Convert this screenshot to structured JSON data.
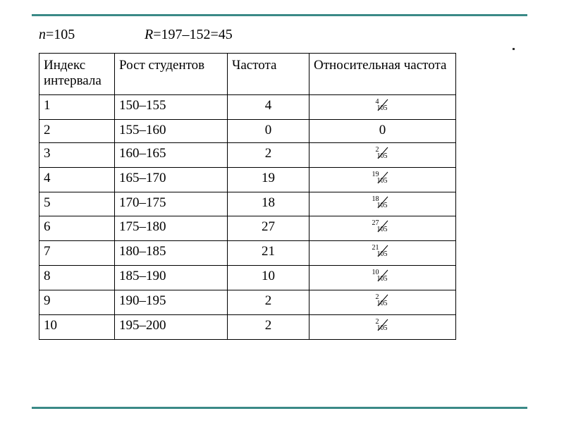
{
  "colors": {
    "teal": "#3a8a87",
    "text": "#000000",
    "bg": "#ffffff",
    "border": "#000000"
  },
  "header": {
    "n_var": "n",
    "n_rest": "=105",
    "R_var": "R",
    "R_rest": "=197–152=45"
  },
  "columns": {
    "c1": "Индекс интервала",
    "c2": "Рост студентов",
    "c3": "Частота",
    "c4": "Относительная частота"
  },
  "rows": [
    {
      "idx": "1",
      "range": "150–155",
      "freq": "4",
      "rel": {
        "type": "frac",
        "num": "4",
        "den": "105"
      }
    },
    {
      "idx": "2",
      "range": "155–160",
      "freq": "0",
      "rel": {
        "type": "text",
        "value": "0"
      }
    },
    {
      "idx": "3",
      "range": "160–165",
      "freq": "2",
      "rel": {
        "type": "frac",
        "num": "2",
        "den": "105"
      }
    },
    {
      "idx": "4",
      "range": "165–170",
      "freq": "19",
      "rel": {
        "type": "frac",
        "num": "19",
        "den": "105"
      }
    },
    {
      "idx": "5",
      "range": "170–175",
      "freq": "18",
      "rel": {
        "type": "frac",
        "num": "18",
        "den": "105"
      }
    },
    {
      "idx": "6",
      "range": "175–180",
      "freq": "27",
      "rel": {
        "type": "frac",
        "num": "27",
        "den": "105"
      }
    },
    {
      "idx": "7",
      "range": "180–185",
      "freq": "21",
      "rel": {
        "type": "frac",
        "num": "21",
        "den": "105"
      }
    },
    {
      "idx": "8",
      "range": "185–190",
      "freq": "10",
      "rel": {
        "type": "frac",
        "num": "10",
        "den": "105"
      }
    },
    {
      "idx": "9",
      "range": "190–195",
      "freq": "2",
      "rel": {
        "type": "frac",
        "num": "2",
        "den": "105"
      }
    },
    {
      "idx": "10",
      "range": "195–200",
      "freq": "2",
      "rel": {
        "type": "frac",
        "num": "2",
        "den": "105"
      }
    }
  ]
}
